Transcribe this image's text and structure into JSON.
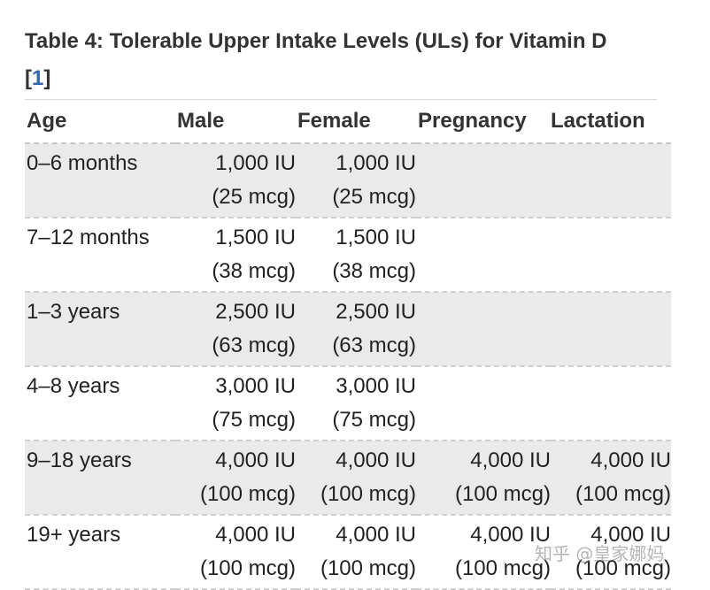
{
  "caption": {
    "title": "Table 4: Tolerable Upper Intake Levels (ULs) for Vitamin D",
    "ref_open": "[",
    "ref_num": "1",
    "ref_close": "]"
  },
  "headers": [
    "Age",
    "Male",
    "Female",
    "Pregnancy",
    "Lactation"
  ],
  "rows": [
    {
      "age": "0–6 months",
      "male": [
        "1,000 IU",
        "(25 mcg)"
      ],
      "female": [
        "1,000 IU",
        "(25 mcg)"
      ],
      "pregnancy": [
        "",
        ""
      ],
      "lactation": [
        "",
        ""
      ]
    },
    {
      "age": "7–12 months",
      "male": [
        "1,500 IU",
        "(38 mcg)"
      ],
      "female": [
        "1,500 IU",
        "(38 mcg)"
      ],
      "pregnancy": [
        "",
        ""
      ],
      "lactation": [
        "",
        ""
      ]
    },
    {
      "age": "1–3 years",
      "male": [
        "2,500 IU",
        "(63 mcg)"
      ],
      "female": [
        "2,500 IU",
        "(63 mcg)"
      ],
      "pregnancy": [
        "",
        ""
      ],
      "lactation": [
        "",
        ""
      ]
    },
    {
      "age": "4–8 years",
      "male": [
        "3,000 IU",
        "(75 mcg)"
      ],
      "female": [
        "3,000 IU",
        "(75 mcg)"
      ],
      "pregnancy": [
        "",
        ""
      ],
      "lactation": [
        "",
        ""
      ]
    },
    {
      "age": "9–18 years",
      "male": [
        "4,000 IU",
        "(100 mcg)"
      ],
      "female": [
        "4,000 IU",
        "(100 mcg)"
      ],
      "pregnancy": [
        "4,000 IU",
        "(100 mcg)"
      ],
      "lactation": [
        "4,000 IU",
        "(100 mcg)"
      ]
    },
    {
      "age": "19+ years",
      "male": [
        "4,000 IU",
        "(100 mcg)"
      ],
      "female": [
        "4,000 IU",
        "(100 mcg)"
      ],
      "pregnancy": [
        "4,000 IU",
        "(100 mcg)"
      ],
      "lactation": [
        "4,000 IU",
        "(100 mcg)"
      ]
    }
  ],
  "watermark": "知乎 @皇家娜妈",
  "colors": {
    "row_shade": "#eaeaea",
    "link": "#3366aa",
    "text": "#333333"
  }
}
